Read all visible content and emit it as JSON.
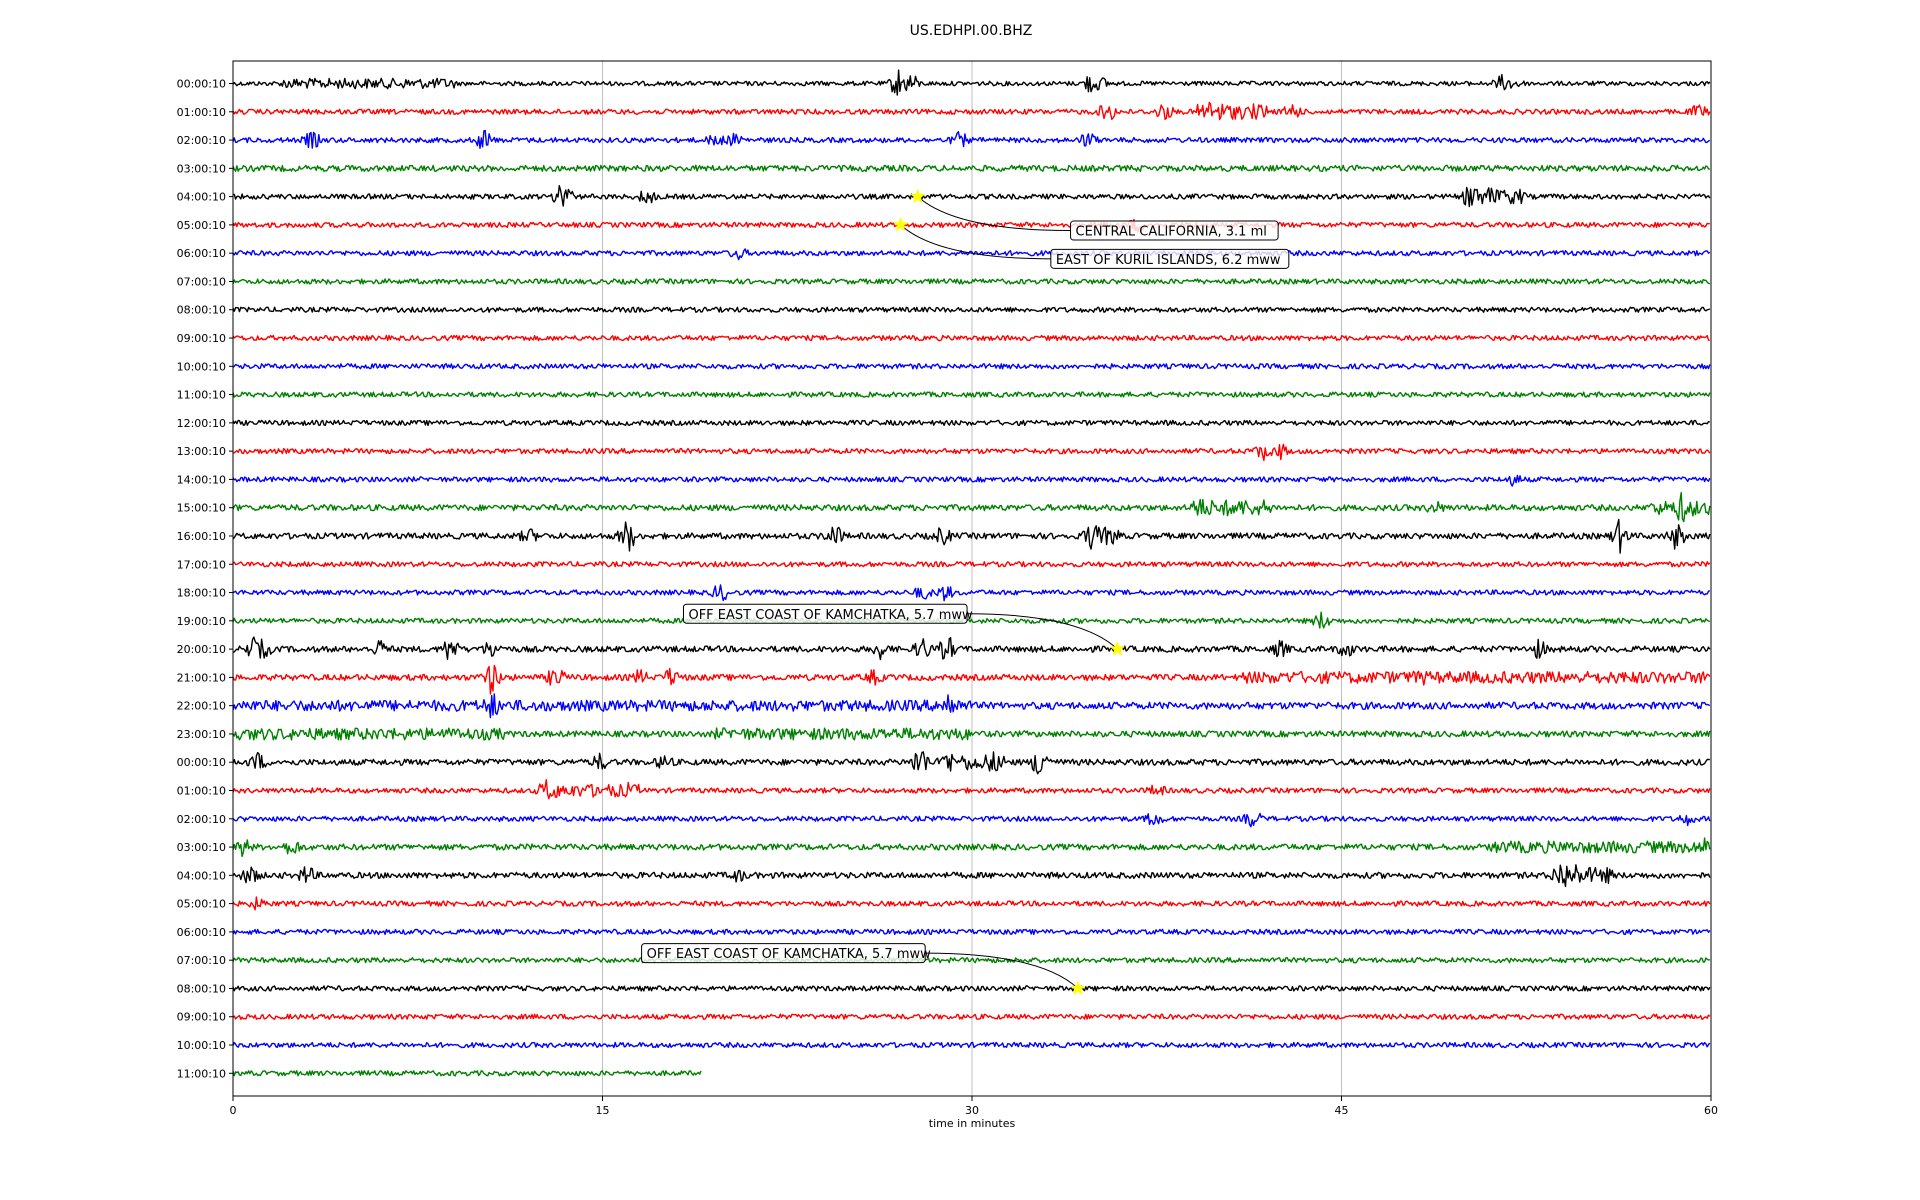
{
  "chart_data": {
    "type": "line",
    "title": "US.EDHPI.00.BHZ",
    "xlabel": "time in minutes",
    "xlim": [
      0,
      60
    ],
    "x_ticks": [
      "0",
      "15",
      "30",
      "45",
      "60"
    ],
    "x_tick_values": [
      0,
      15,
      30,
      45,
      60
    ],
    "grid": "vertical",
    "colors": [
      "#000000",
      "#ff0000",
      "#0000ff",
      "#008000"
    ],
    "marker_color": "#ffff00",
    "row_labels": [
      "00:00:10",
      "01:00:10",
      "02:00:10",
      "03:00:10",
      "04:00:10",
      "05:00:10",
      "06:00:10",
      "07:00:10",
      "08:00:10",
      "09:00:10",
      "10:00:10",
      "11:00:10",
      "12:00:10",
      "13:00:10",
      "14:00:10",
      "15:00:10",
      "16:00:10",
      "17:00:10",
      "18:00:10",
      "19:00:10",
      "20:00:10",
      "21:00:10",
      "22:00:10",
      "23:00:10",
      "00:00:10",
      "01:00:10",
      "02:00:10",
      "03:00:10",
      "04:00:10",
      "05:00:10",
      "06:00:10",
      "07:00:10",
      "08:00:10",
      "09:00:10",
      "10:00:10",
      "11:00:10"
    ],
    "last_row_end_minute": 19,
    "traces": [
      {
        "row": 0,
        "noise": 2.2,
        "spikes": [
          [
            27.0,
            14
          ],
          [
            27.5,
            10
          ],
          [
            34.8,
            9
          ],
          [
            35.2,
            6
          ],
          [
            51.5,
            7
          ],
          [
            52.0,
            6
          ]
        ],
        "bursts": [
          [
            2.0,
            9.0,
            3
          ]
        ]
      },
      {
        "row": 1,
        "noise": 2.5,
        "spikes": [
          [
            35.5,
            10
          ],
          [
            37.8,
            8
          ],
          [
            39.5,
            13
          ],
          [
            40.0,
            10
          ],
          [
            41.5,
            7
          ],
          [
            43.0,
            8
          ],
          [
            59.5,
            6
          ]
        ],
        "bursts": [
          [
            39.0,
            42.0,
            5
          ]
        ]
      },
      {
        "row": 2,
        "noise": 2.5,
        "spikes": [
          [
            3.2,
            8
          ],
          [
            10.2,
            10
          ],
          [
            19.6,
            6
          ],
          [
            20.4,
            6
          ],
          [
            29.5,
            7
          ],
          [
            34.7,
            7
          ]
        ],
        "bursts": []
      },
      {
        "row": 3,
        "noise": 3.0,
        "spikes": [],
        "bursts": []
      },
      {
        "row": 4,
        "noise": 2.5,
        "spikes": [
          [
            13.4,
            18
          ],
          [
            16.8,
            7
          ],
          [
            50.3,
            15
          ],
          [
            51.0,
            8
          ]
        ],
        "bursts": [
          [
            50.0,
            52.5,
            5
          ]
        ]
      },
      {
        "row": 5,
        "noise": 2.5,
        "spikes": [
          [
            36.7,
            6
          ]
        ],
        "bursts": []
      },
      {
        "row": 6,
        "noise": 2.5,
        "spikes": [
          [
            20.5,
            5
          ]
        ],
        "bursts": []
      },
      {
        "row": 7,
        "noise": 2.5,
        "spikes": [],
        "bursts": []
      },
      {
        "row": 8,
        "noise": 2.5,
        "spikes": [],
        "bursts": []
      },
      {
        "row": 9,
        "noise": 2.5,
        "spikes": [],
        "bursts": []
      },
      {
        "row": 10,
        "noise": 2.5,
        "spikes": [],
        "bursts": []
      },
      {
        "row": 11,
        "noise": 2.5,
        "spikes": [],
        "bursts": []
      },
      {
        "row": 12,
        "noise": 2.5,
        "spikes": [],
        "bursts": []
      },
      {
        "row": 13,
        "noise": 2.5,
        "spikes": [
          [
            41.8,
            8
          ],
          [
            42.5,
            7
          ]
        ],
        "bursts": []
      },
      {
        "row": 14,
        "noise": 2.5,
        "spikes": [
          [
            52.0,
            5
          ]
        ],
        "bursts": []
      },
      {
        "row": 15,
        "noise": 3.0,
        "spikes": [
          [
            39.2,
            10
          ],
          [
            40.5,
            8
          ],
          [
            41.2,
            7
          ],
          [
            48.8,
            5
          ],
          [
            58.8,
            14
          ],
          [
            59.2,
            8
          ]
        ],
        "bursts": [
          [
            39.0,
            42.2,
            5
          ],
          [
            57.5,
            60.0,
            4
          ]
        ]
      },
      {
        "row": 16,
        "noise": 3.0,
        "spikes": [
          [
            12.0,
            6
          ],
          [
            16.0,
            16
          ],
          [
            24.4,
            11
          ],
          [
            28.8,
            8
          ],
          [
            34.9,
            13
          ],
          [
            56.3,
            15
          ],
          [
            58.6,
            12
          ]
        ],
        "bursts": [
          [
            34.5,
            36.0,
            6
          ]
        ]
      },
      {
        "row": 17,
        "noise": 2.5,
        "spikes": [],
        "bursts": []
      },
      {
        "row": 18,
        "noise": 2.5,
        "spikes": [
          [
            19.8,
            8
          ],
          [
            28.0,
            6
          ],
          [
            28.9,
            7
          ]
        ],
        "bursts": []
      },
      {
        "row": 19,
        "noise": 2.5,
        "spikes": [
          [
            44.2,
            8
          ]
        ],
        "bursts": []
      },
      {
        "row": 20,
        "noise": 3.0,
        "spikes": [
          [
            0.8,
            10
          ],
          [
            1.2,
            8
          ],
          [
            6.0,
            8
          ],
          [
            8.8,
            12
          ],
          [
            10.5,
            8
          ],
          [
            26.3,
            8
          ],
          [
            28.0,
            10
          ],
          [
            29.0,
            12
          ],
          [
            42.5,
            7
          ],
          [
            45.2,
            7
          ],
          [
            53.0,
            8
          ]
        ],
        "bursts": []
      },
      {
        "row": 21,
        "noise": 3.0,
        "spikes": [
          [
            10.5,
            16
          ],
          [
            13.1,
            10
          ],
          [
            16.5,
            6
          ],
          [
            17.8,
            8
          ],
          [
            26.0,
            6
          ],
          [
            48.2,
            7
          ]
        ],
        "bursts": [
          [
            41.0,
            60.0,
            3
          ]
        ]
      },
      {
        "row": 22,
        "noise": 3.5,
        "spikes": [
          [
            10.5,
            12
          ],
          [
            29.1,
            14
          ]
        ],
        "bursts": [
          [
            0.0,
            30.0,
            2
          ]
        ]
      },
      {
        "row": 23,
        "noise": 3.0,
        "spikes": [],
        "bursts": [
          [
            0.0,
            11.0,
            3
          ],
          [
            19.5,
            30.0,
            3
          ]
        ]
      },
      {
        "row": 24,
        "noise": 3.0,
        "spikes": [
          [
            1.0,
            8
          ],
          [
            14.9,
            7
          ],
          [
            17.5,
            6
          ],
          [
            27.9,
            16
          ],
          [
            29.0,
            11
          ],
          [
            30.8,
            10
          ],
          [
            32.8,
            18
          ]
        ],
        "bursts": [
          [
            29.5,
            31.5,
            5
          ]
        ]
      },
      {
        "row": 25,
        "noise": 2.5,
        "spikes": [
          [
            12.7,
            10
          ],
          [
            13.0,
            8
          ],
          [
            14.8,
            6
          ],
          [
            16.0,
            6
          ],
          [
            37.5,
            5
          ]
        ],
        "bursts": [
          [
            12.5,
            16.5,
            4
          ]
        ]
      },
      {
        "row": 26,
        "noise": 2.5,
        "spikes": [
          [
            37.4,
            7
          ],
          [
            41.4,
            8
          ],
          [
            59.0,
            5
          ]
        ],
        "bursts": []
      },
      {
        "row": 27,
        "noise": 3.0,
        "spikes": [
          [
            0.4,
            8
          ],
          [
            2.4,
            7
          ],
          [
            59.8,
            8
          ]
        ],
        "bursts": [
          [
            51.0,
            60.0,
            3
          ]
        ]
      },
      {
        "row": 28,
        "noise": 3.0,
        "spikes": [
          [
            0.7,
            8
          ],
          [
            3.0,
            8
          ],
          [
            20.5,
            5
          ],
          [
            54.0,
            15
          ],
          [
            54.5,
            10
          ]
        ],
        "bursts": [
          [
            53.5,
            56.0,
            5
          ]
        ]
      },
      {
        "row": 29,
        "noise": 2.5,
        "spikes": [
          [
            1.0,
            5
          ]
        ],
        "bursts": []
      },
      {
        "row": 30,
        "noise": 2.5,
        "spikes": [],
        "bursts": []
      },
      {
        "row": 31,
        "noise": 2.5,
        "spikes": [],
        "bursts": []
      },
      {
        "row": 32,
        "noise": 2.5,
        "spikes": [],
        "bursts": []
      },
      {
        "row": 33,
        "noise": 2.5,
        "spikes": [],
        "bursts": []
      },
      {
        "row": 34,
        "noise": 2.5,
        "spikes": [],
        "bursts": []
      },
      {
        "row": 35,
        "noise": 2.5,
        "spikes": [],
        "bursts": []
      }
    ],
    "annotations": [
      {
        "text": "CENTRAL CALIFORNIA, 3.1 ml",
        "marker_row": 4,
        "marker_minute": 27.8,
        "box_bg": "#ffffff",
        "box_row_offset": 1.2,
        "box_anchor_minute": 34.0
      },
      {
        "text": "EAST OF KURIL ISLANDS, 6.2 mww",
        "marker_row": 5,
        "marker_minute": 27.1,
        "box_bg": "#ffffff",
        "box_row_offset": 1.2,
        "box_anchor_minute": 33.2
      },
      {
        "text": "OFF EAST COAST OF KAMCHATKA, 5.7 mww",
        "marker_row": 20,
        "marker_minute": 35.9,
        "box_bg": "#ffffff",
        "box_row_offset": -1.25,
        "box_anchor_minute": 29.8
      },
      {
        "text": "OFF EAST COAST OF KAMCHATKA, 5.7 mww",
        "marker_row": 32,
        "marker_minute": 34.3,
        "box_bg": "#ffffff",
        "box_row_offset": -1.25,
        "box_anchor_minute": 28.1
      }
    ]
  }
}
